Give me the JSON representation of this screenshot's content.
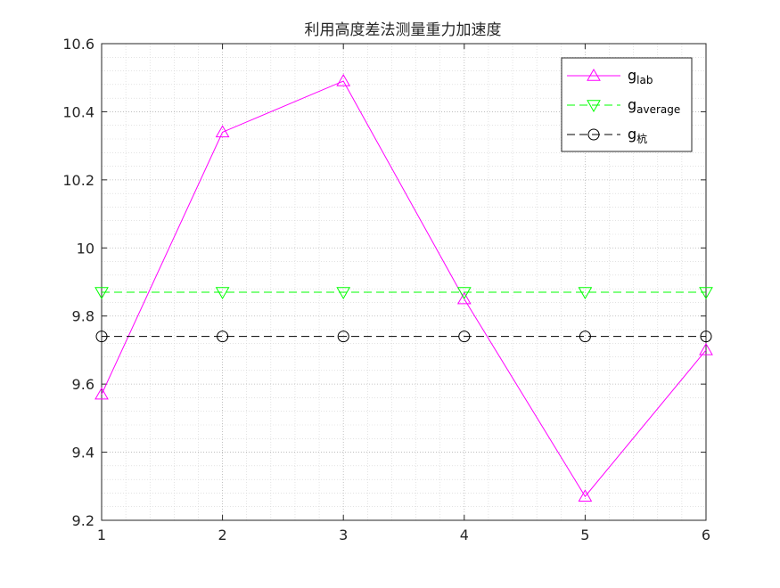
{
  "chart_data": {
    "type": "line",
    "title": "利用高度差法测量重力加速度",
    "xlabel": "",
    "ylabel": "",
    "x": [
      1,
      2,
      3,
      4,
      5,
      6
    ],
    "xlim": [
      1,
      6
    ],
    "ylim": [
      9.2,
      10.6
    ],
    "xticks": [
      "1",
      "2",
      "3",
      "4",
      "5",
      "6"
    ],
    "yticks": [
      "9.2",
      "9.4",
      "9.6",
      "9.8",
      "10",
      "10.2",
      "10.4",
      "10.6"
    ],
    "grid": true,
    "minor_grid": true,
    "legend_position": "top-right",
    "series": [
      {
        "name": "g",
        "subscript": "lab",
        "color": "#FF00FF",
        "dash": "solid",
        "marker": "triangle-up",
        "values": [
          9.57,
          10.34,
          10.49,
          9.85,
          9.27,
          9.7
        ]
      },
      {
        "name": "g",
        "subscript": "average",
        "color": "#00FF00",
        "dash": "dashed",
        "marker": "triangle-down",
        "values": [
          9.87,
          9.87,
          9.87,
          9.87,
          9.87,
          9.87
        ]
      },
      {
        "name": "g",
        "subscript": "杭",
        "color": "#000000",
        "dash": "dashed",
        "marker": "circle",
        "values": [
          9.74,
          9.74,
          9.74,
          9.74,
          9.74,
          9.74
        ]
      }
    ]
  }
}
